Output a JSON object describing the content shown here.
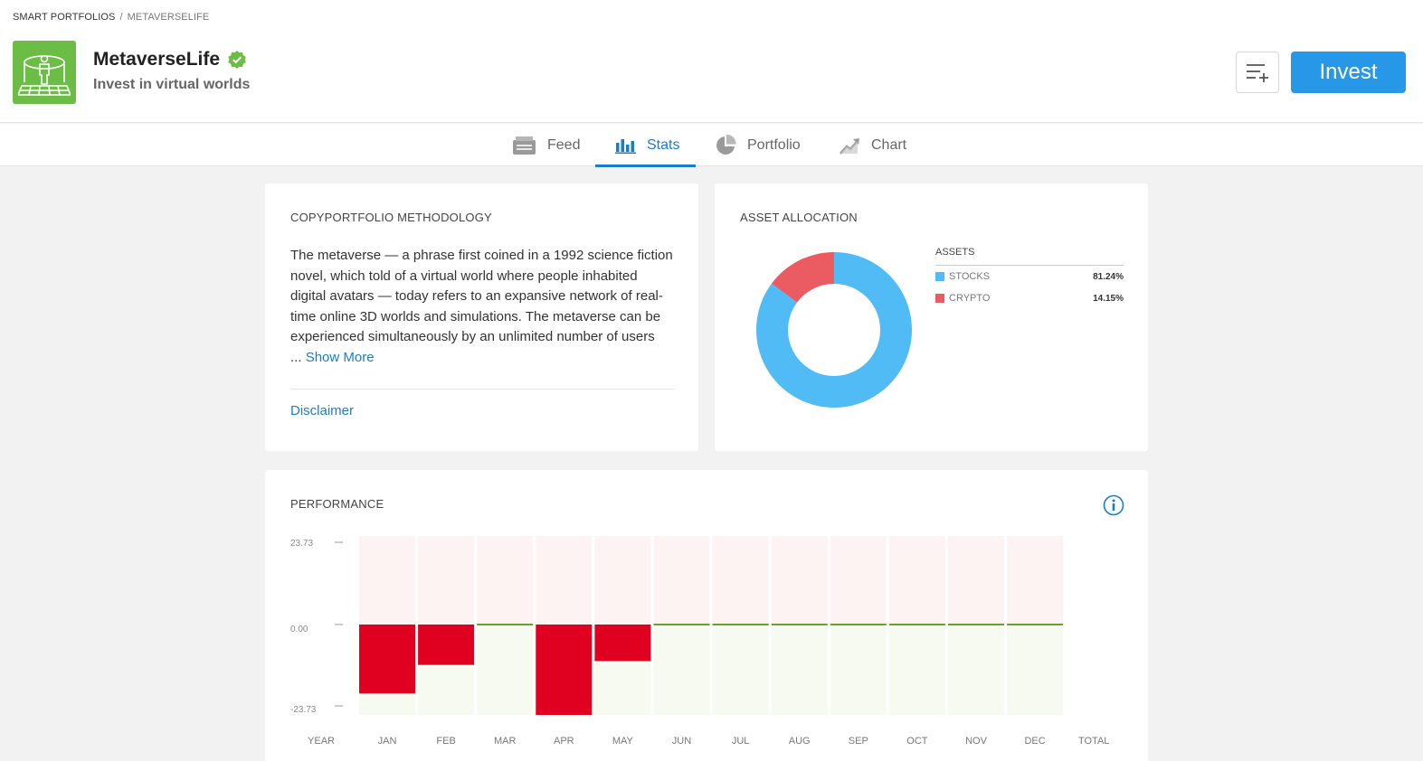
{
  "breadcrumb": {
    "root": "SMART PORTFOLIOS",
    "separator": "/",
    "current": "METAVERSELIFE"
  },
  "portfolio": {
    "name": "MetaverseLife",
    "tagline": "Invest in virtual worlds",
    "verified": true
  },
  "actions": {
    "watchlist_icon": "add-to-list-icon",
    "invest_label": "Invest"
  },
  "tabs": [
    {
      "label": "Feed",
      "icon": "feed-icon",
      "active": false
    },
    {
      "label": "Stats",
      "icon": "stats-icon",
      "active": true
    },
    {
      "label": "Portfolio",
      "icon": "pie-icon",
      "active": false
    },
    {
      "label": "Chart",
      "icon": "chart-icon",
      "active": false
    }
  ],
  "methodology": {
    "title": "COPYPORTFOLIO METHODOLOGY",
    "text": "The metaverse — a phrase first coined in a 1992 science fiction novel, which told of a virtual world where people inhabited digital avatars — today refers to an expansive network of real-time online 3D worlds and simulations. The metaverse can be experienced simultaneously by an unlimited number of users",
    "ellipsis": "...",
    "show_more": "Show More",
    "disclaimer": "Disclaimer"
  },
  "allocation": {
    "title": "ASSET ALLOCATION",
    "legend_title": "ASSETS",
    "assets": [
      {
        "name": "STOCKS",
        "value": "81.24%",
        "pct": 81.24,
        "color": "#50bbf4"
      },
      {
        "name": "CRYPTO",
        "value": "14.15%",
        "pct": 14.15,
        "color": "#ea5b62"
      }
    ]
  },
  "performance": {
    "title": "PERFORMANCE",
    "chart_data": {
      "type": "bar",
      "categories": [
        "JAN",
        "FEB",
        "MAR",
        "APR",
        "MAY",
        "JUN",
        "JUL",
        "AUG",
        "SEP",
        "OCT",
        "NOV",
        "DEC"
      ],
      "values": [
        -18.1,
        -10.6,
        0.3,
        -23.73,
        -9.6,
        0,
        0,
        0,
        0,
        0,
        0,
        0
      ],
      "row_label": "YEAR",
      "total_label": "TOTAL",
      "ylim": [
        -23.73,
        23.73
      ],
      "yticks": [
        "23.73",
        "0.00",
        "-23.73"
      ],
      "negative_color": "#e0001f",
      "zero_line_color": "#6a9f2a"
    }
  }
}
